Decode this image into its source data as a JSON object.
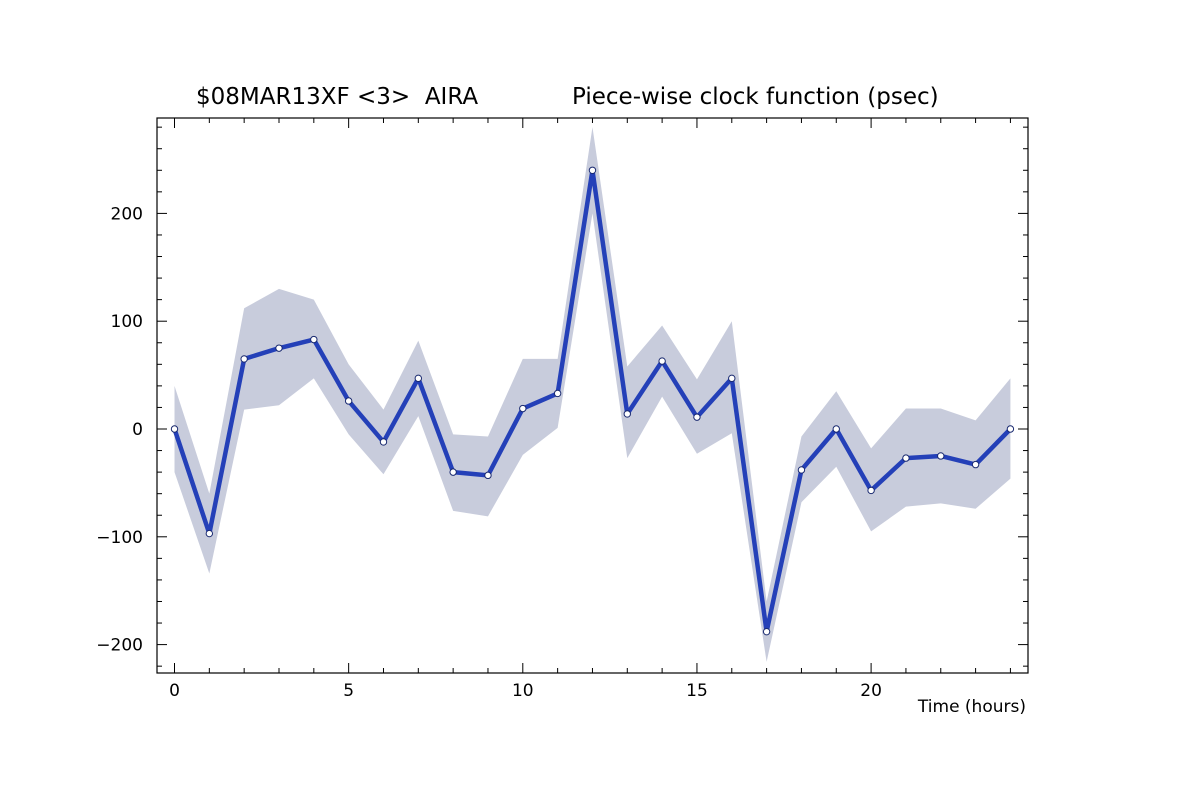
{
  "header": {
    "experiment": "$08MAR13XF <3>  AIRA",
    "title": "Piece-wise clock function (psec)"
  },
  "chart_data": {
    "type": "line",
    "title": "Piece-wise clock function (psec)",
    "subtitle": "$08MAR13XF <3>  AIRA",
    "xlabel": "Time (hours)",
    "ylabel": "",
    "xlim": [
      -0.5,
      24.5
    ],
    "ylim": [
      -225,
      290
    ],
    "xticks": [
      0,
      5,
      10,
      15,
      20
    ],
    "yticks": [
      -200,
      -100,
      0,
      100,
      200
    ],
    "x": [
      0,
      1,
      2,
      3,
      4,
      5,
      6,
      7,
      8,
      9,
      10,
      11,
      12,
      13,
      14,
      15,
      16,
      17,
      18,
      19,
      20,
      21,
      22,
      23,
      24
    ],
    "series": [
      {
        "values": [
          0,
          -97,
          65,
          75,
          83,
          26,
          -12,
          47,
          -40,
          -43,
          19,
          33,
          240,
          14,
          63,
          11,
          47,
          -188,
          -38,
          0,
          -57,
          -27,
          -25,
          -33,
          0
        ],
        "upper": [
          40,
          -60,
          112,
          130,
          120,
          60,
          18,
          82,
          -5,
          -7,
          65,
          65,
          280,
          58,
          96,
          46,
          100,
          -160,
          -7,
          35,
          -18,
          19,
          19,
          8,
          47
        ],
        "lower": [
          -40,
          -134,
          18,
          22,
          47,
          -5,
          -42,
          12,
          -76,
          -81,
          -24,
          1,
          200,
          -27,
          30,
          -23,
          -4,
          -216,
          -68,
          -35,
          -95,
          -72,
          -69,
          -74,
          -46
        ]
      }
    ],
    "colors": {
      "line": "#2440b8",
      "band": "#c8ccdc",
      "axis": "#000000"
    },
    "grid": false
  }
}
